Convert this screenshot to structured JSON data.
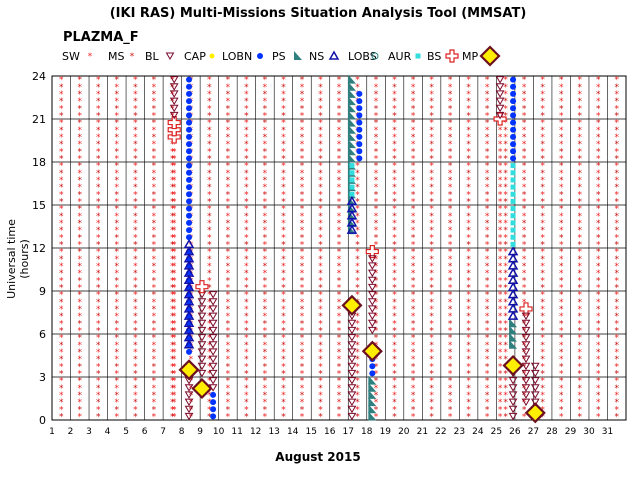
{
  "title": "(IKI RAS) Multi-Missions Situation Analysis Tool (MMSAT)",
  "subtitle": "PLAZMA_F",
  "legend": [
    {
      "label": "SW",
      "key": "SW"
    },
    {
      "label": "MS",
      "key": "MS"
    },
    {
      "label": "BL",
      "key": "BL"
    },
    {
      "label": "CAP",
      "key": "CAP"
    },
    {
      "label": "LOBN",
      "key": "LOBN"
    },
    {
      "label": "PS",
      "key": "PS"
    },
    {
      "label": "NS",
      "key": "NS"
    },
    {
      "label": "LOBS",
      "key": "LOBS"
    },
    {
      "label": "AUR",
      "key": "AUR"
    },
    {
      "label": "BS",
      "key": "BS"
    },
    {
      "label": "MP",
      "key": "MP"
    }
  ],
  "colors": {
    "SW": "#ee2222",
    "MS": "#cc1111",
    "BL": "#7a0a2a",
    "CAP": "#ffee00",
    "LOBN": "#0033ff",
    "PS": "#2f7f7f",
    "NS": "#1111aa",
    "LOBS": "#1a8080",
    "AUR": "#33dddd",
    "BS": "#dd2222",
    "MP": "#6b1020",
    "grid": "#000000"
  },
  "chart_data": {
    "type": "scatter",
    "title": "(IKI RAS) Multi-Missions Situation Analysis Tool (MMSAT)",
    "subtitle": "PLAZMA_F",
    "xlabel": "August 2015",
    "ylabel": "Universal time (hours)",
    "xlim": [
      1,
      32
    ],
    "ylim": [
      0,
      24
    ],
    "x_ticks": [
      1,
      2,
      3,
      4,
      5,
      6,
      7,
      8,
      9,
      10,
      11,
      12,
      13,
      14,
      15,
      16,
      17,
      18,
      19,
      20,
      21,
      22,
      23,
      24,
      25,
      26,
      27,
      28,
      29,
      30,
      31
    ],
    "y_ticks": [
      0,
      3,
      6,
      9,
      12,
      15,
      18,
      21,
      24
    ],
    "grid": true,
    "region_columns": [
      {
        "day": 7.6,
        "segments": [
          {
            "region": "SW",
            "from": 0,
            "to": 19.5
          },
          {
            "region": "BS",
            "from": 19.5,
            "to": 21
          },
          {
            "region": "BL",
            "from": 21,
            "to": 24
          }
        ]
      },
      {
        "day": 8.4,
        "segments": [
          {
            "region": "BL",
            "from": 0,
            "to": 3.5
          },
          {
            "region": "MP",
            "from": 3.5,
            "to": 3.5
          },
          {
            "region": "LOBN",
            "from": 4.5,
            "to": 12
          },
          {
            "region": "NS",
            "from": 5,
            "to": 12.5
          },
          {
            "region": "LOBN",
            "from": 12.5,
            "to": 24
          }
        ]
      },
      {
        "day": 9.1,
        "segments": [
          {
            "region": "BL",
            "from": 3,
            "to": 9
          },
          {
            "region": "BS",
            "from": 9.3,
            "to": 9.3
          },
          {
            "region": "MP",
            "from": 2.2,
            "to": 2.2
          }
        ]
      },
      {
        "day": 9.7,
        "segments": [
          {
            "region": "LOBN",
            "from": 0,
            "to": 2
          },
          {
            "region": "BL",
            "from": 2,
            "to": 9
          }
        ]
      },
      {
        "day": 17.2,
        "segments": [
          {
            "region": "PS",
            "from": 13,
            "to": 24
          },
          {
            "region": "AUR",
            "from": 15.5,
            "to": 18
          },
          {
            "region": "NS",
            "from": 13,
            "to": 15.5
          },
          {
            "region": "BL",
            "from": 0,
            "to": 8
          },
          {
            "region": "MP",
            "from": 8,
            "to": 8
          }
        ]
      },
      {
        "day": 17.6,
        "segments": [
          {
            "region": "LOBN",
            "from": 18,
            "to": 23
          }
        ]
      },
      {
        "day": 18.3,
        "segments": [
          {
            "region": "LOBN",
            "from": 3,
            "to": 5
          },
          {
            "region": "PS",
            "from": 0,
            "to": 3
          },
          {
            "region": "BS",
            "from": 11.5,
            "to": 12
          },
          {
            "region": "BL",
            "from": 6,
            "to": 11.5
          },
          {
            "region": "MP",
            "from": 4.8,
            "to": 4.8
          }
        ]
      },
      {
        "day": 25.2,
        "segments": [
          {
            "region": "SW",
            "from": 0,
            "to": 21
          },
          {
            "region": "BS",
            "from": 21,
            "to": 21
          },
          {
            "region": "BL",
            "from": 21,
            "to": 24
          }
        ]
      },
      {
        "day": 25.9,
        "segments": [
          {
            "region": "PS",
            "from": 5,
            "to": 7
          },
          {
            "region": "NS",
            "from": 7,
            "to": 12
          },
          {
            "region": "AUR",
            "from": 12,
            "to": 18
          },
          {
            "region": "LOBN",
            "from": 18,
            "to": 24
          },
          {
            "region": "BL",
            "from": 0,
            "to": 4
          },
          {
            "region": "MP",
            "from": 3.8,
            "to": 3.8
          }
        ]
      },
      {
        "day": 26.6,
        "segments": [
          {
            "region": "BS",
            "from": 7.5,
            "to": 8
          },
          {
            "region": "BL",
            "from": 1,
            "to": 7.5
          }
        ]
      },
      {
        "day": 27.1,
        "segments": [
          {
            "region": "MP",
            "from": 0.5,
            "to": 0.5
          },
          {
            "region": "BL",
            "from": 1,
            "to": 4
          }
        ]
      }
    ]
  }
}
